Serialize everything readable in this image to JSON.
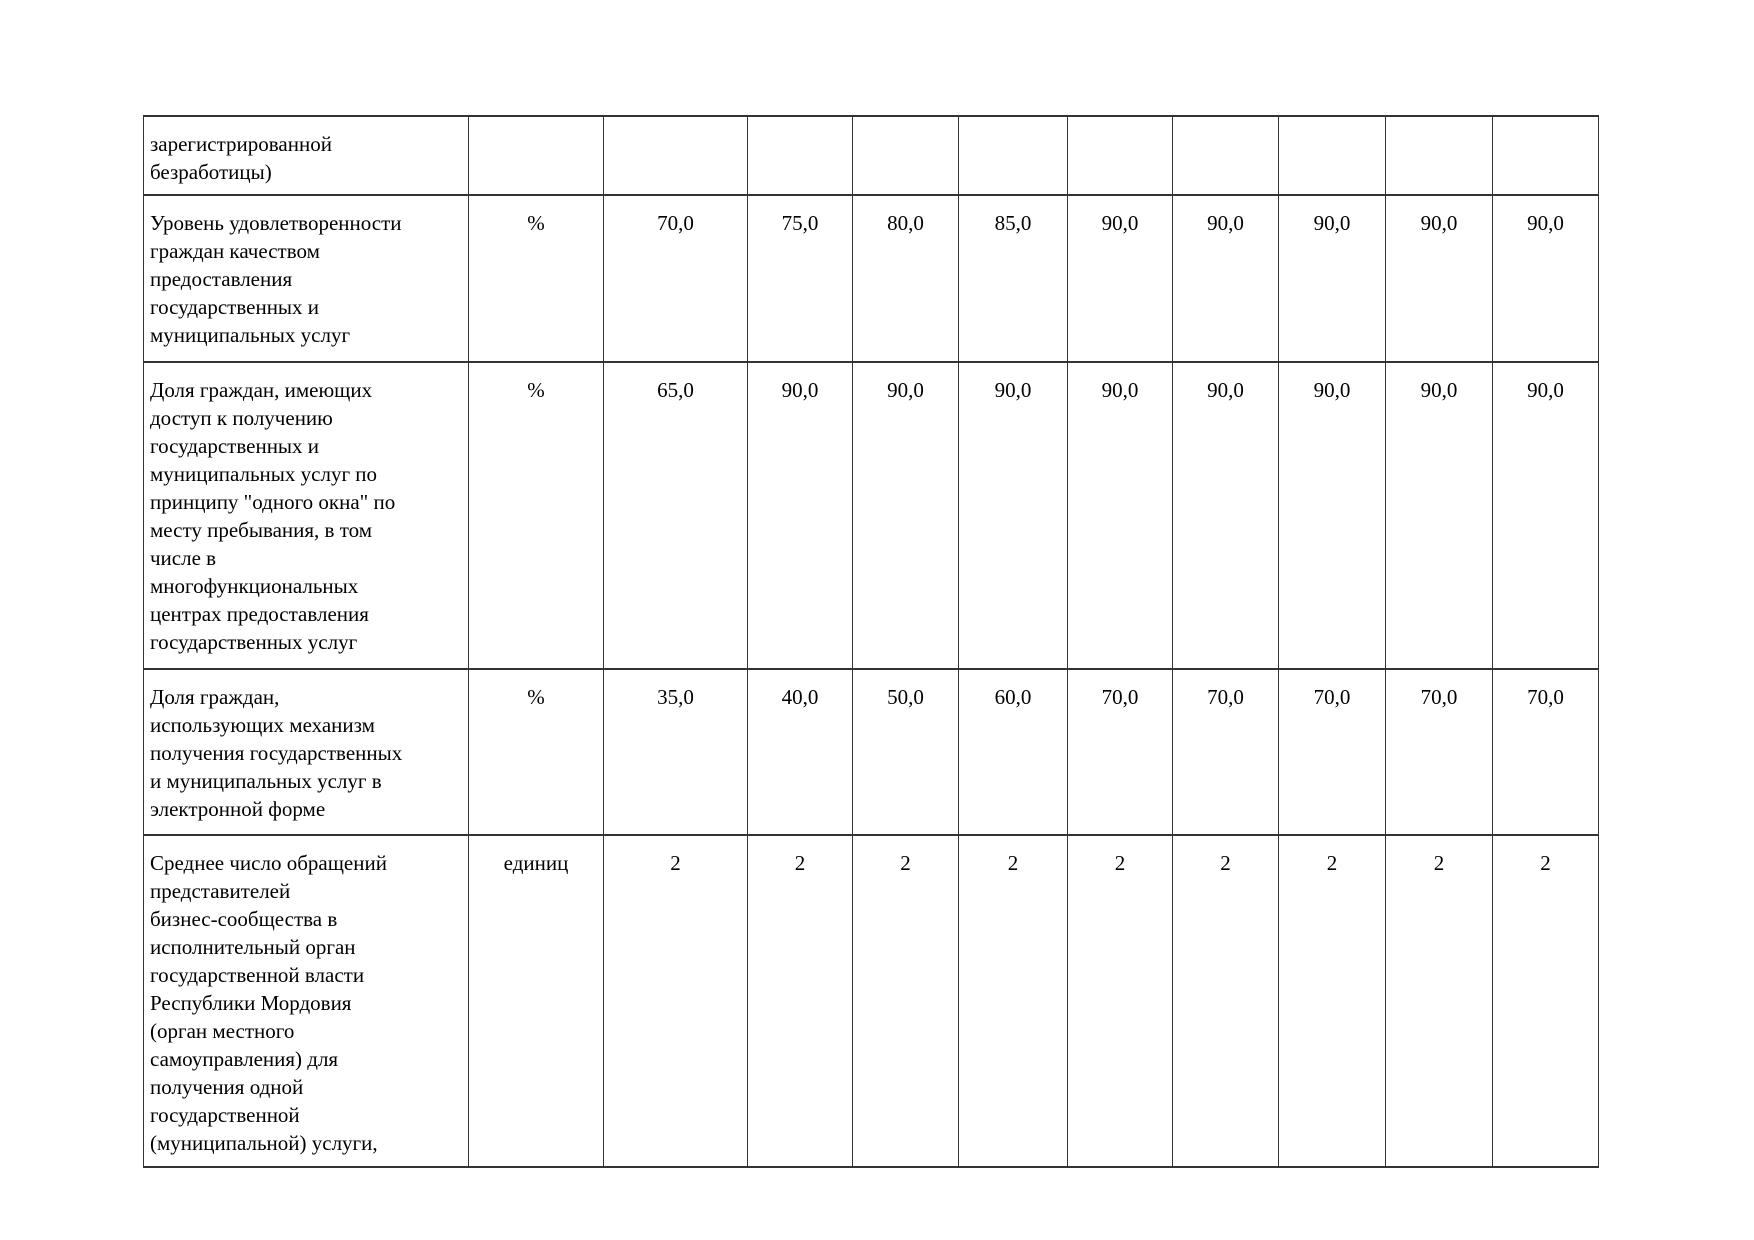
{
  "colors": {
    "page_background": "#ffffff",
    "text": "#000000",
    "table_border": "#333333"
  },
  "table": {
    "rows": [
      {
        "indicator": "зарегистрированной\nбезработицы)",
        "unit": "",
        "values": [
          "",
          "",
          "",
          "",
          "",
          "",
          "",
          "",
          ""
        ]
      },
      {
        "indicator": "Уровень удовлетворенности\nграждан качеством\nпредоставления\nгосударственных и\nмуниципальных услуг",
        "unit": "%",
        "values": [
          "70,0",
          "75,0",
          "80,0",
          "85,0",
          "90,0",
          "90,0",
          "90,0",
          "90,0",
          "90,0"
        ]
      },
      {
        "indicator": "Доля граждан, имеющих\nдоступ к получению\nгосударственных и\nмуниципальных услуг по\nпринципу \"одного окна\" по\nместу пребывания, в том\nчисле в\nмногофункциональных\nцентрах предоставления\nгосударственных услуг",
        "unit": "%",
        "values": [
          "65,0",
          "90,0",
          "90,0",
          "90,0",
          "90,0",
          "90,0",
          "90,0",
          "90,0",
          "90,0"
        ]
      },
      {
        "indicator": "Доля граждан,\nиспользующих механизм\nполучения государственных\nи муниципальных услуг в\nэлектронной форме",
        "unit": "%",
        "values": [
          "35,0",
          "40,0",
          "50,0",
          "60,0",
          "70,0",
          "70,0",
          "70,0",
          "70,0",
          "70,0"
        ]
      },
      {
        "indicator": "Среднее число обращений\nпредставителей\nбизнес-сообщества в\nисполнительный орган\nгосударственной власти\nРеспублики Мордовия\n(орган местного\nсамоуправления) для\nполучения одной\nгосударственной\n(муниципальной) услуги,",
        "unit": "единиц",
        "values": [
          "2",
          "2",
          "2",
          "2",
          "2",
          "2",
          "2",
          "2",
          "2"
        ]
      }
    ]
  }
}
